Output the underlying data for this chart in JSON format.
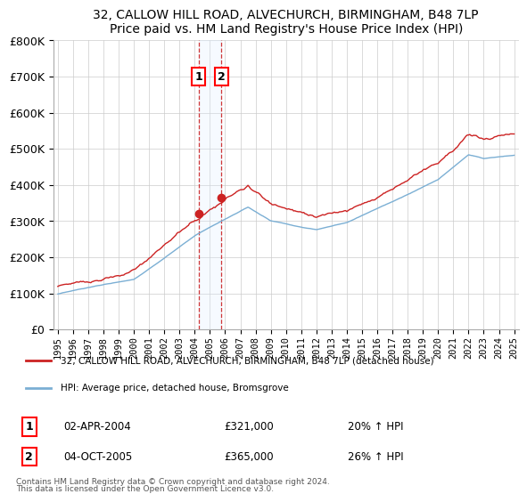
{
  "title": "32, CALLOW HILL ROAD, ALVECHURCH, BIRMINGHAM, B48 7LP",
  "subtitle": "Price paid vs. HM Land Registry's House Price Index (HPI)",
  "legend_line1": "32, CALLOW HILL ROAD, ALVECHURCH, BIRMINGHAM, B48 7LP (detached house)",
  "legend_line2": "HPI: Average price, detached house, Bromsgrove",
  "sale1_label": "1",
  "sale1_date": "02-APR-2004",
  "sale1_price": "£321,000",
  "sale1_hpi": "20% ↑ HPI",
  "sale1_year": 2004.25,
  "sale1_value": 321000,
  "sale2_label": "2",
  "sale2_date": "04-OCT-2005",
  "sale2_price": "£365,000",
  "sale2_hpi": "26% ↑ HPI",
  "sale2_year": 2005.75,
  "sale2_value": 365000,
  "hpi_color": "#7bafd4",
  "price_color": "#cc2222",
  "sale_marker_color": "#cc2222",
  "dashed_color": "#cc2222",
  "shade_color": "#ddeeff",
  "ylim": [
    0,
    800000
  ],
  "xlim_min": 1994.7,
  "xlim_max": 2025.3,
  "footer1": "Contains HM Land Registry data © Crown copyright and database right 2024.",
  "footer2": "This data is licensed under the Open Government Licence v3.0."
}
